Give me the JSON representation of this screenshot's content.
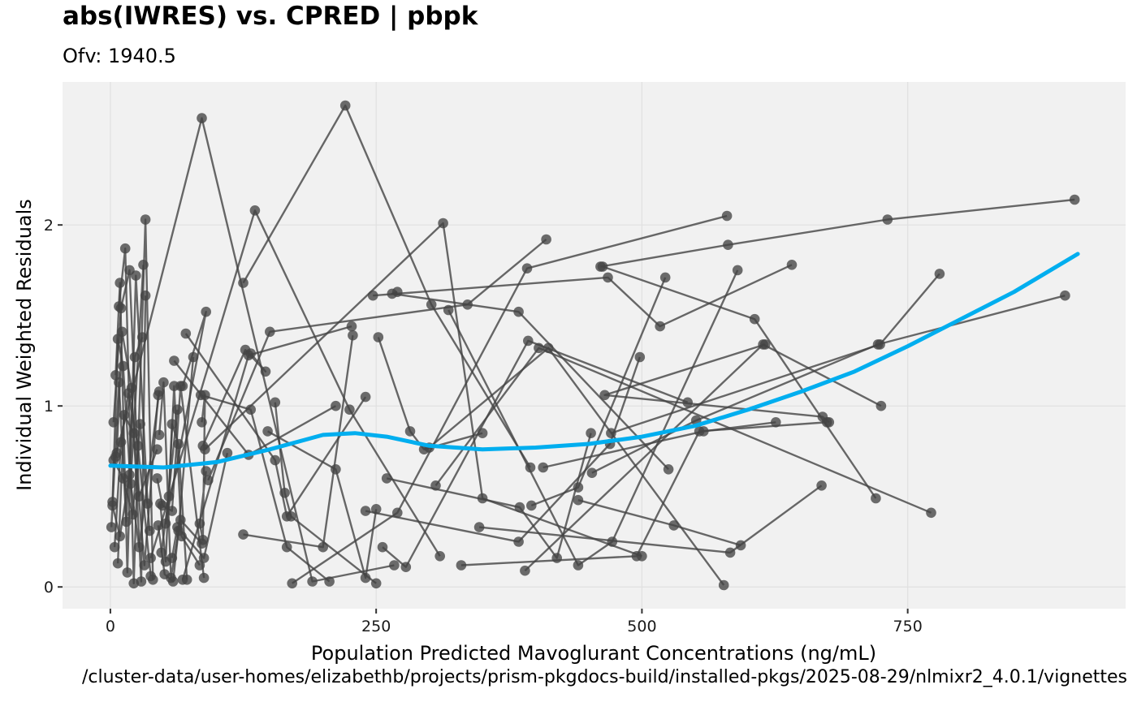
{
  "chart_data": {
    "type": "line",
    "title": "abs(IWRES) vs. CPRED | pbpk",
    "subtitle": "Ofv: 1940.5",
    "xlabel": "Population Predicted Mavoglurant Concentrations (ng/mL)",
    "ylabel": "Individual Weighted Residuals",
    "caption": "/cluster-data/user-homes/elizabethb/projects/prism-pkgdocs-build/installed-pkgs/2025-08-29/nlmixr2_4.0.1/vignettes",
    "xlim": [
      -45,
      955
    ],
    "ylim": [
      -0.12,
      2.79
    ],
    "x_ticks": [
      0,
      250,
      500,
      750
    ],
    "x_tick_labels": [
      "0",
      "250",
      "500",
      "750"
    ],
    "y_ticks": [
      0,
      1,
      2
    ],
    "y_tick_labels": [
      "0",
      "1",
      "2"
    ],
    "grid": true,
    "legend": "none",
    "colors": {
      "panel": "#f1f1f1",
      "grid": "#e0e0e0",
      "points": "#444444",
      "smooth": "#00aeef"
    },
    "series": [
      {
        "name": "id1",
        "points": [
          [
            461,
            1.77
          ],
          [
            581,
            1.89
          ],
          [
            731,
            2.03
          ],
          [
            907,
            2.14
          ]
        ]
      },
      {
        "name": "id2",
        "points": [
          [
            125,
            1.68
          ],
          [
            221,
            2.66
          ],
          [
            302,
            1.56
          ],
          [
            395,
            0.66
          ]
        ]
      },
      {
        "name": "id3",
        "points": [
          [
            5,
            0.72
          ],
          [
            86,
            2.59
          ],
          [
            190,
            0.03
          ],
          [
            267,
            0.12
          ]
        ]
      },
      {
        "name": "id4",
        "points": [
          [
            38,
            0.16
          ],
          [
            136,
            2.08
          ],
          [
            225,
            0.98
          ],
          [
            310,
            0.17
          ]
        ]
      },
      {
        "name": "id5",
        "points": [
          [
            89,
            0.76
          ],
          [
            313,
            2.01
          ],
          [
            350,
            0.49
          ],
          [
            500,
            0.17
          ]
        ]
      },
      {
        "name": "id6",
        "points": [
          [
            410,
            1.92
          ],
          [
            336,
            1.56
          ],
          [
            150,
            1.41
          ],
          [
            92,
            0.59
          ]
        ]
      },
      {
        "name": "id7",
        "points": [
          [
            270,
            1.63
          ],
          [
            265,
            1.62
          ],
          [
            384,
            1.52
          ],
          [
            525,
            0.65
          ]
        ]
      },
      {
        "name": "id8",
        "points": [
          [
            463,
            1.77
          ],
          [
            606,
            1.48
          ],
          [
            720,
            0.49
          ]
        ]
      },
      {
        "name": "id9",
        "points": [
          [
            247,
            1.61
          ],
          [
            468,
            1.71
          ],
          [
            517,
            1.44
          ],
          [
            641,
            1.78
          ]
        ]
      },
      {
        "name": "id10",
        "points": [
          [
            580,
            2.05
          ],
          [
            392,
            1.76
          ],
          [
            270,
            0.41
          ],
          [
            171,
            0.02
          ]
        ]
      },
      {
        "name": "id11",
        "points": [
          [
            590,
            1.75
          ],
          [
            472,
            0.25
          ],
          [
            440,
            0.12
          ],
          [
            318,
            1.53
          ]
        ]
      },
      {
        "name": "id12",
        "points": [
          [
            522,
            1.71
          ],
          [
            440,
            0.55
          ],
          [
            396,
            0.45
          ]
        ]
      },
      {
        "name": "id13",
        "points": [
          [
            616,
            1.34
          ],
          [
            465,
            1.06
          ],
          [
            670,
            0.94
          ],
          [
            676,
            0.91
          ]
        ]
      },
      {
        "name": "id14",
        "points": [
          [
            543,
            1.02
          ],
          [
            393,
            1.36
          ],
          [
            278,
            0.11
          ],
          [
            256,
            0.22
          ]
        ]
      },
      {
        "name": "id15",
        "points": [
          [
            725,
            1.0
          ],
          [
            614,
            1.34
          ],
          [
            390,
            0.09
          ]
        ]
      },
      {
        "name": "id16",
        "points": [
          [
            780,
            1.73
          ],
          [
            724,
            1.34
          ],
          [
            471,
            0.85
          ]
        ]
      },
      {
        "name": "id17",
        "points": [
          [
            898,
            1.61
          ],
          [
            722,
            1.34
          ],
          [
            551,
            0.92
          ],
          [
            453,
            0.63
          ]
        ]
      },
      {
        "name": "id18",
        "points": [
          [
            772,
            0.41
          ],
          [
            403,
            1.32
          ],
          [
            306,
            0.56
          ]
        ]
      },
      {
        "name": "id19",
        "points": [
          [
            577,
            0.01
          ],
          [
            412,
            1.32
          ],
          [
            300,
            0.77
          ]
        ]
      },
      {
        "name": "id20",
        "points": [
          [
            669,
            0.56
          ],
          [
            583,
            0.19
          ],
          [
            347,
            0.33
          ]
        ]
      },
      {
        "name": "id21",
        "points": [
          [
            626,
            0.91
          ],
          [
            558,
            0.86
          ],
          [
            407,
            0.66
          ]
        ]
      },
      {
        "name": "id22",
        "points": [
          [
            674,
            0.91
          ],
          [
            554,
            0.86
          ],
          [
            495,
            0.17
          ],
          [
            330,
            0.12
          ]
        ]
      },
      {
        "name": "id23",
        "points": [
          [
            498,
            1.27
          ],
          [
            470,
            0.79
          ],
          [
            384,
            0.25
          ],
          [
            240,
            0.42
          ]
        ]
      },
      {
        "name": "id24",
        "points": [
          [
            452,
            0.85
          ],
          [
            420,
            0.16
          ],
          [
            385,
            0.44
          ],
          [
            260,
            0.6
          ]
        ]
      },
      {
        "name": "id25",
        "points": [
          [
            593,
            0.23
          ],
          [
            530,
            0.34
          ],
          [
            440,
            0.48
          ]
        ]
      },
      {
        "name": "id26",
        "points": [
          [
            227,
            1.44
          ],
          [
            130,
            1.28
          ],
          [
            68,
            0.04
          ]
        ]
      },
      {
        "name": "id27",
        "points": [
          [
            212,
            1.0
          ],
          [
            130,
            0.73
          ],
          [
            60,
            1.25
          ]
        ]
      },
      {
        "name": "id28",
        "points": [
          [
            228,
            1.39
          ],
          [
            200,
            0.22
          ],
          [
            125,
            0.29
          ]
        ]
      },
      {
        "name": "id29",
        "points": [
          [
            252,
            1.38
          ],
          [
            282,
            0.86
          ],
          [
            295,
            0.76
          ],
          [
            350,
            0.85
          ]
        ]
      },
      {
        "name": "id30",
        "points": [
          [
            240,
            1.05
          ],
          [
            166,
            0.39
          ],
          [
            155,
            0.7
          ],
          [
            71,
            1.4
          ]
        ]
      },
      {
        "name": "id31",
        "points": [
          [
            155,
            1.02
          ],
          [
            164,
            0.52
          ],
          [
            170,
            0.39
          ],
          [
            250,
            0.02
          ]
        ]
      },
      {
        "name": "id32",
        "points": [
          [
            132,
            1.29
          ],
          [
            146,
            1.19
          ],
          [
            127,
            1.31
          ],
          [
            87,
            0.78
          ]
        ]
      },
      {
        "name": "id33",
        "points": [
          [
            68,
            1.11
          ],
          [
            90,
            1.52
          ],
          [
            52,
            0.35
          ],
          [
            63,
            0.98
          ]
        ]
      },
      {
        "name": "id34",
        "points": [
          [
            85,
            1.06
          ],
          [
            132,
            0.98
          ],
          [
            166,
            0.22
          ],
          [
            206,
            0.03
          ]
        ]
      },
      {
        "name": "id35",
        "points": [
          [
            148,
            0.86
          ],
          [
            212,
            0.65
          ],
          [
            240,
            0.05
          ],
          [
            250,
            0.43
          ]
        ]
      },
      {
        "name": "id36",
        "points": [
          [
            8,
            1.55
          ],
          [
            14,
            1.87
          ],
          [
            22,
            0.02
          ],
          [
            33,
            2.03
          ],
          [
            40,
            0.04
          ]
        ]
      },
      {
        "name": "id37",
        "points": [
          [
            3,
            0.91
          ],
          [
            10,
            1.54
          ],
          [
            18,
            1.75
          ],
          [
            27,
            0.5
          ],
          [
            44,
            0.76
          ]
        ]
      },
      {
        "name": "id38",
        "points": [
          [
            5,
            1.17
          ],
          [
            9,
            1.68
          ],
          [
            16,
            0.08
          ],
          [
            24,
            1.72
          ],
          [
            35,
            0.46
          ]
        ]
      },
      {
        "name": "id39",
        "points": [
          [
            2,
            0.47
          ],
          [
            7,
            1.37
          ],
          [
            12,
            1.22
          ],
          [
            19,
            0.57
          ],
          [
            31,
            1.78
          ]
        ]
      },
      {
        "name": "id40",
        "points": [
          [
            6,
            0.74
          ],
          [
            11,
            1.41
          ],
          [
            20,
            1.1
          ],
          [
            29,
            0.03
          ],
          [
            33,
            1.61
          ]
        ]
      },
      {
        "name": "id41",
        "points": [
          [
            1,
            0.33
          ],
          [
            8,
            1.13
          ],
          [
            15,
            0.36
          ],
          [
            23,
            1.27
          ],
          [
            30,
            1.38
          ]
        ]
      },
      {
        "name": "id42",
        "points": [
          [
            4,
            0.22
          ],
          [
            10,
            0.8
          ],
          [
            17,
            1.07
          ],
          [
            26,
            0.78
          ],
          [
            38,
            0.06
          ]
        ]
      },
      {
        "name": "id43",
        "points": [
          [
            3,
            0.7
          ],
          [
            12,
            0.6
          ],
          [
            21,
            0.4
          ],
          [
            28,
            0.9
          ],
          [
            37,
            0.31
          ]
        ]
      },
      {
        "name": "id44",
        "points": [
          [
            7,
            0.13
          ],
          [
            13,
            0.95
          ],
          [
            22,
            0.85
          ],
          [
            32,
            0.12
          ],
          [
            45,
            1.06
          ]
        ]
      },
      {
        "name": "id45",
        "points": [
          [
            2,
            0.45
          ],
          [
            9,
            0.28
          ],
          [
            18,
            0.62
          ],
          [
            27,
            0.22
          ],
          [
            46,
            1.08
          ]
        ]
      },
      {
        "name": "id46",
        "points": [
          [
            47,
            0.46
          ],
          [
            52,
            0.14
          ],
          [
            58,
            0.9
          ],
          [
            64,
            0.79
          ],
          [
            72,
            0.04
          ]
        ]
      },
      {
        "name": "id47",
        "points": [
          [
            46,
            0.84
          ],
          [
            50,
            1.13
          ],
          [
            57,
            0.05
          ],
          [
            66,
            0.37
          ],
          [
            86,
            0.24
          ]
        ]
      },
      {
        "name": "id48",
        "points": [
          [
            48,
            0.19
          ],
          [
            55,
            0.5
          ],
          [
            60,
            1.11
          ],
          [
            67,
            0.28
          ],
          [
            84,
            0.12
          ]
        ]
      },
      {
        "name": "id49",
        "points": [
          [
            45,
            0.34
          ],
          [
            51,
            0.07
          ],
          [
            59,
            0.03
          ],
          [
            64,
            0.31
          ],
          [
            78,
            1.27
          ]
        ]
      },
      {
        "name": "id50",
        "points": [
          [
            44,
            0.6
          ],
          [
            49,
            0.45
          ],
          [
            58,
            0.42
          ],
          [
            66,
            1.11
          ],
          [
            88,
            0.05
          ]
        ]
      },
      {
        "name": "id51",
        "points": [
          [
            86,
            0.91
          ],
          [
            89,
            1.06
          ],
          [
            87,
            0.26
          ],
          [
            84,
            0.35
          ],
          [
            90,
            0.64
          ]
        ]
      },
      {
        "name": "id52",
        "points": [
          [
            58,
            0.16
          ],
          [
            63,
            0.33
          ],
          [
            88,
            0.16
          ],
          [
            110,
            0.74
          ]
        ]
      }
    ],
    "smooth": {
      "method": "loess",
      "x": [
        0,
        50,
        100,
        150,
        200,
        230,
        260,
        300,
        350,
        400,
        450,
        500,
        550,
        600,
        650,
        700,
        750,
        800,
        850,
        910
      ],
      "y": [
        0.67,
        0.66,
        0.69,
        0.76,
        0.84,
        0.85,
        0.83,
        0.78,
        0.76,
        0.77,
        0.79,
        0.83,
        0.89,
        0.98,
        1.08,
        1.19,
        1.33,
        1.48,
        1.63,
        1.84
      ]
    }
  }
}
